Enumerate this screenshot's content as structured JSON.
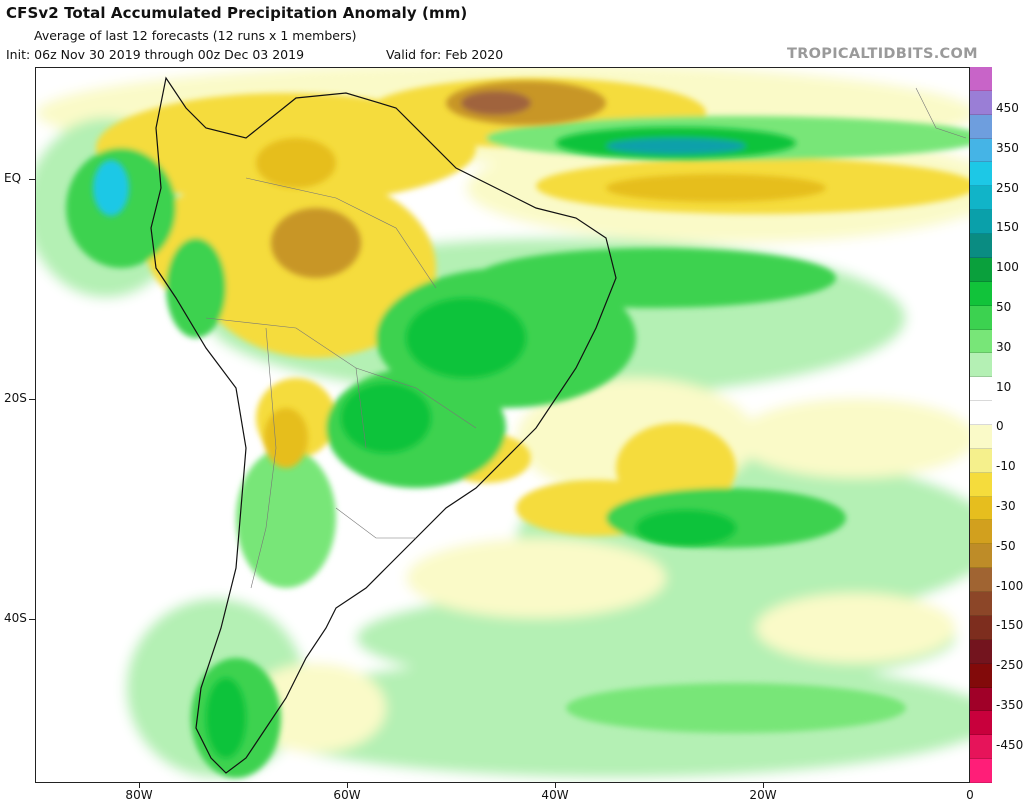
{
  "header": {
    "title": "CFSv2 Total Accumulated Precipitation Anomaly (mm)",
    "subtitle": "Average of last 12 forecasts (12 runs x 1 members)",
    "init": "Init: 06z Nov 30 2019 through 00z Dec 03 2019",
    "valid": "Valid for: Feb 2020",
    "brand": "TROPICALTIDBITS.COM"
  },
  "axes": {
    "lat_labels": [
      "EQ",
      "20S",
      "40S"
    ],
    "lon_labels": [
      "80W",
      "60W",
      "40W",
      "20W",
      "0"
    ]
  },
  "colorbar": {
    "labels": [
      "450",
      "350",
      "250",
      "150",
      "100",
      "50",
      "30",
      "10",
      "0",
      "-10",
      "-30",
      "-50",
      "-100",
      "-150",
      "-250",
      "-350",
      "-450"
    ],
    "colors": [
      "#c864c8",
      "#9a7ed6",
      "#6e9ede",
      "#45b4e6",
      "#1dc8e6",
      "#11b4c8",
      "#0aa0aa",
      "#0a8c82",
      "#0aa03c",
      "#11c33a",
      "#3cd250",
      "#78e678",
      "#b4f0b4",
      "#ffffff",
      "#ffffff",
      "#fafac8",
      "#f5f08c",
      "#f5dc3c",
      "#e6be1e",
      "#d2a01e",
      "#be8c28",
      "#a06432",
      "#8c4628",
      "#7d2d1e",
      "#73141e",
      "#820a0a",
      "#a00028",
      "#c8003c",
      "#e6145a",
      "#ff1e78"
    ]
  },
  "legend_colors": {
    "wet_strong": "#0a8c82",
    "wet_mid": "#11c33a",
    "wet_light": "#b4f0b4",
    "dry_light": "#fafac8",
    "dry_mid": "#f5dc3c",
    "dry_strong": "#c89628",
    "dry_max": "#a0643c"
  }
}
